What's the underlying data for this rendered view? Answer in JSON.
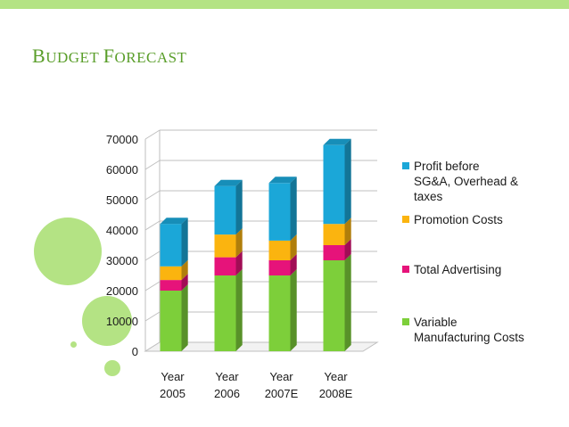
{
  "slide": {
    "title_first_letter": "B",
    "title_rest_1": "UDGET ",
    "title_second_letter": "F",
    "title_rest_2": "ORECAST",
    "accent": "#b4e384",
    "title_color": "#5a9e2a"
  },
  "chart_data": {
    "type": "bar",
    "stacked": true,
    "title": "Budget Forecast",
    "categories": [
      [
        "Year",
        "2005"
      ],
      [
        "Year",
        "2006"
      ],
      [
        "Year",
        "2007E"
      ],
      [
        "Year",
        "2008E"
      ]
    ],
    "ylim": [
      0,
      70000
    ],
    "yticks": [
      "0",
      "10000",
      "20000",
      "30000",
      "40000",
      "50000",
      "60000",
      "70000"
    ],
    "series": [
      {
        "name": "Variable Manufacturing Costs",
        "label_lines": [
          "Variable",
          "Manufacturing Costs"
        ],
        "color": "#7dcf3a",
        "values": [
          20000,
          25000,
          25000,
          30000
        ]
      },
      {
        "name": "Total Advertising",
        "label_lines": [
          "Total Advertising"
        ],
        "color": "#e6137a",
        "values": [
          3500,
          6000,
          5000,
          5000
        ]
      },
      {
        "name": "Promotion Costs",
        "label_lines": [
          "Promotion Costs"
        ],
        "color": "#fbb40f",
        "values": [
          4500,
          7500,
          6500,
          7000
        ]
      },
      {
        "name": "Profit before SG&A, Overhead & taxes",
        "label_lines": [
          "Profit before",
          "SG&A, Overhead &",
          "taxes"
        ],
        "color": "#1ba7d8",
        "values": [
          14000,
          16000,
          19000,
          26000
        ]
      }
    ],
    "legend_position": "right"
  }
}
